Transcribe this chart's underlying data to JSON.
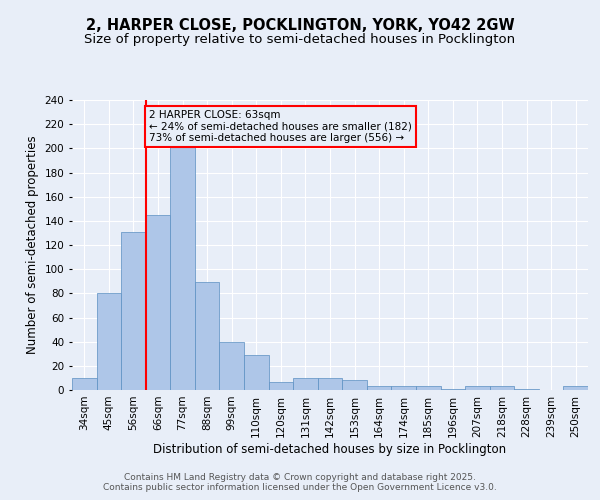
{
  "title": "2, HARPER CLOSE, POCKLINGTON, YORK, YO42 2GW",
  "subtitle": "Size of property relative to semi-detached houses in Pocklington",
  "xlabel": "Distribution of semi-detached houses by size in Pocklington",
  "ylabel": "Number of semi-detached properties",
  "categories": [
    "34sqm",
    "45sqm",
    "56sqm",
    "66sqm",
    "77sqm",
    "88sqm",
    "99sqm",
    "110sqm",
    "120sqm",
    "131sqm",
    "142sqm",
    "153sqm",
    "164sqm",
    "174sqm",
    "185sqm",
    "196sqm",
    "207sqm",
    "218sqm",
    "228sqm",
    "239sqm",
    "250sqm"
  ],
  "values": [
    10,
    80,
    131,
    145,
    202,
    89,
    40,
    29,
    7,
    10,
    10,
    8,
    3,
    3,
    3,
    1,
    3,
    3,
    1,
    0,
    3
  ],
  "bar_color": "#aec6e8",
  "bar_edge_color": "#5a8fc2",
  "bg_color": "#e8eef8",
  "grid_color": "#ffffff",
  "vline_x_index": 2,
  "vline_color": "red",
  "annotation_line1": "2 HARPER CLOSE: 63sqm",
  "annotation_line2": "← 24% of semi-detached houses are smaller (182)",
  "annotation_line3": "73% of semi-detached houses are larger (556) →",
  "annotation_box_color": "red",
  "ylim": [
    0,
    240
  ],
  "yticks": [
    0,
    20,
    40,
    60,
    80,
    100,
    120,
    140,
    160,
    180,
    200,
    220,
    240
  ],
  "footer": "Contains HM Land Registry data © Crown copyright and database right 2025.\nContains public sector information licensed under the Open Government Licence v3.0.",
  "title_fontsize": 10.5,
  "subtitle_fontsize": 9.5,
  "ylabel_fontsize": 8.5,
  "xlabel_fontsize": 8.5,
  "tick_fontsize": 7.5,
  "annotation_fontsize": 7.5,
  "footer_fontsize": 6.5
}
